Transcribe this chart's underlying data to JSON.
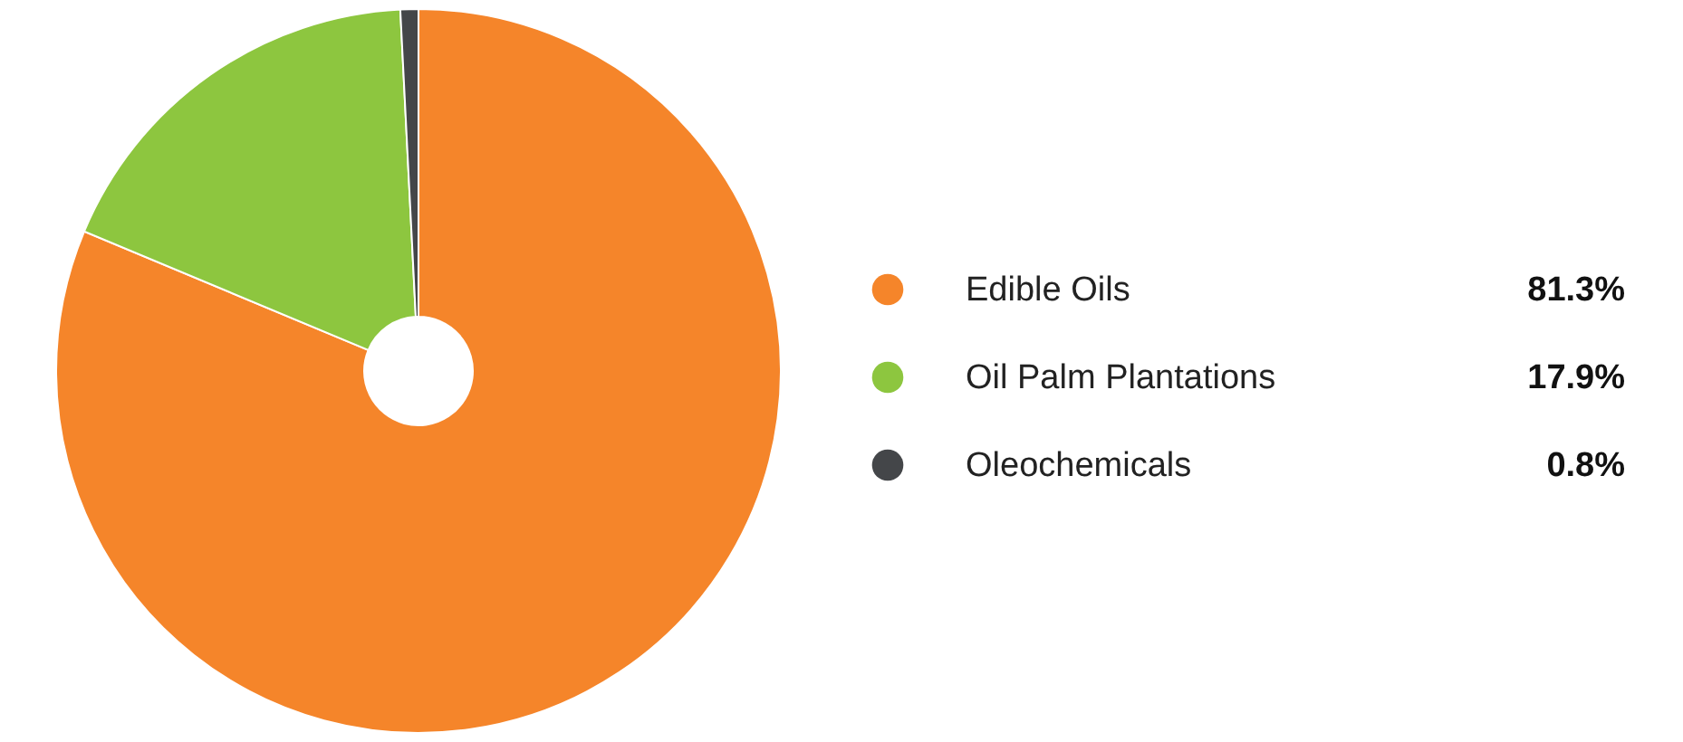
{
  "chart_data": {
    "type": "donut",
    "categories": [
      "Edible Oils",
      "Oil Palm Plantations",
      "Oleochemicals"
    ],
    "values": [
      81.3,
      17.9,
      0.8
    ],
    "colors": [
      "#f5852a",
      "#8dc63f",
      "#444649"
    ],
    "value_labels": [
      "81.3%",
      "17.9%",
      "0.8%"
    ],
    "legend": "right"
  }
}
